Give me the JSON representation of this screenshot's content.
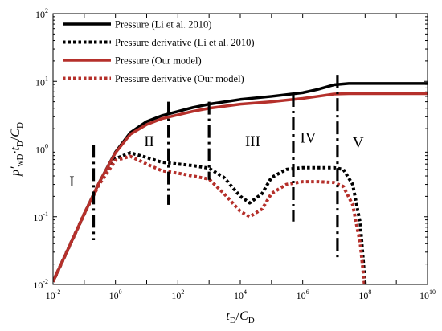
{
  "chart_data": {
    "type": "line",
    "xscale": "log",
    "yscale": "log",
    "xlim": [
      0.01,
      10000000000
    ],
    "ylim": [
      0.01,
      100
    ],
    "xlabel": {
      "main": "t",
      "sub1": "D",
      "sep": "/",
      "main2": "C",
      "sub2": "D"
    },
    "ylabel": {
      "main": "p′",
      "sub1": "wD",
      "mid": "·t",
      "sub2": "D",
      "sep": "/",
      "main2": "C",
      "sub3": "D"
    },
    "x_ticks": [
      {
        "base": "10",
        "exp": "-2"
      },
      {
        "base": "10",
        "exp": "0"
      },
      {
        "base": "10",
        "exp": "2"
      },
      {
        "base": "10",
        "exp": "4"
      },
      {
        "base": "10",
        "exp": "6"
      },
      {
        "base": "10",
        "exp": "8"
      },
      {
        "base": "10",
        "exp": "10"
      }
    ],
    "y_ticks": [
      {
        "base": "10",
        "exp": "-2"
      },
      {
        "base": "10",
        "exp": "-1"
      },
      {
        "base": "10",
        "exp": "0"
      },
      {
        "base": "10",
        "exp": "1"
      },
      {
        "base": "10",
        "exp": "2"
      }
    ],
    "legend_position": "top-left",
    "series": [
      {
        "name": "Pressure (Li et al. 2010)",
        "color": "#000000",
        "style": "solid",
        "x": [
          0.01,
          0.03,
          0.1,
          0.3,
          1,
          3,
          10,
          30,
          100,
          300,
          1000,
          10000,
          100000,
          1000000,
          3000000,
          10000000,
          30000000,
          100000000,
          10000000000
        ],
        "y": [
          0.011,
          0.033,
          0.11,
          0.32,
          0.9,
          1.75,
          2.55,
          3.1,
          3.6,
          4.1,
          4.6,
          5.4,
          6.0,
          6.8,
          7.6,
          8.9,
          9.3,
          9.3,
          9.3
        ]
      },
      {
        "name": "Pressure derivative (Li et al. 2010)",
        "color": "#000000",
        "style": "dotted",
        "x": [
          0.01,
          0.03,
          0.1,
          0.3,
          1,
          3,
          10,
          30,
          100,
          300,
          1000,
          3000,
          10000,
          20000,
          50000,
          100000,
          300000,
          1000000,
          3000000,
          10000000,
          20000000,
          40000000,
          70000000,
          100000000
        ],
        "y": [
          0.011,
          0.033,
          0.11,
          0.31,
          0.72,
          0.88,
          0.75,
          0.64,
          0.6,
          0.57,
          0.52,
          0.38,
          0.2,
          0.16,
          0.22,
          0.38,
          0.5,
          0.53,
          0.53,
          0.53,
          0.5,
          0.3,
          0.08,
          0.01
        ]
      },
      {
        "name": "Pressure (Our model)",
        "color": "#b5302b",
        "style": "solid",
        "x": [
          0.01,
          0.03,
          0.1,
          0.3,
          1,
          3,
          10,
          30,
          100,
          300,
          1000,
          10000,
          100000,
          1000000,
          3000000,
          10000000,
          30000000,
          100000000,
          10000000000
        ],
        "y": [
          0.011,
          0.033,
          0.11,
          0.32,
          0.88,
          1.65,
          2.3,
          2.8,
          3.2,
          3.6,
          4.0,
          4.6,
          5.0,
          5.6,
          6.0,
          6.5,
          6.6,
          6.6,
          6.6
        ]
      },
      {
        "name": "Pressure derivative (Our model)",
        "color": "#b5302b",
        "style": "dotted",
        "x": [
          0.01,
          0.03,
          0.1,
          0.3,
          1,
          3,
          10,
          30,
          100,
          300,
          1000,
          3000,
          10000,
          20000,
          50000,
          100000,
          300000,
          1000000,
          3000000,
          10000000,
          20000000,
          40000000,
          70000000,
          100000000
        ],
        "y": [
          0.011,
          0.033,
          0.11,
          0.3,
          0.68,
          0.78,
          0.6,
          0.48,
          0.44,
          0.4,
          0.36,
          0.22,
          0.12,
          0.1,
          0.13,
          0.22,
          0.3,
          0.33,
          0.33,
          0.32,
          0.28,
          0.15,
          0.04,
          0.008
        ]
      }
    ],
    "region_boundaries": [
      {
        "x": 0.2,
        "y_low": 0.045,
        "y_high": 1.15
      },
      {
        "x": 50,
        "y_low": 0.15,
        "y_high": 5.0
      },
      {
        "x": 1000,
        "y_low": 0.35,
        "y_high": 5.0
      },
      {
        "x": 500000,
        "y_low": 0.085,
        "y_high": 6.5
      },
      {
        "x": 13000000,
        "y_low": 0.025,
        "y_high": 12.5
      }
    ],
    "region_labels": [
      {
        "text": "I",
        "x": 0.04,
        "y": 0.28
      },
      {
        "text": "II",
        "x": 12,
        "y": 1.1
      },
      {
        "text": "III",
        "x": 25000,
        "y": 1.1
      },
      {
        "text": "IV",
        "x": 1500000,
        "y": 1.25
      },
      {
        "text": "V",
        "x": 60000000,
        "y": 1.05
      }
    ]
  }
}
